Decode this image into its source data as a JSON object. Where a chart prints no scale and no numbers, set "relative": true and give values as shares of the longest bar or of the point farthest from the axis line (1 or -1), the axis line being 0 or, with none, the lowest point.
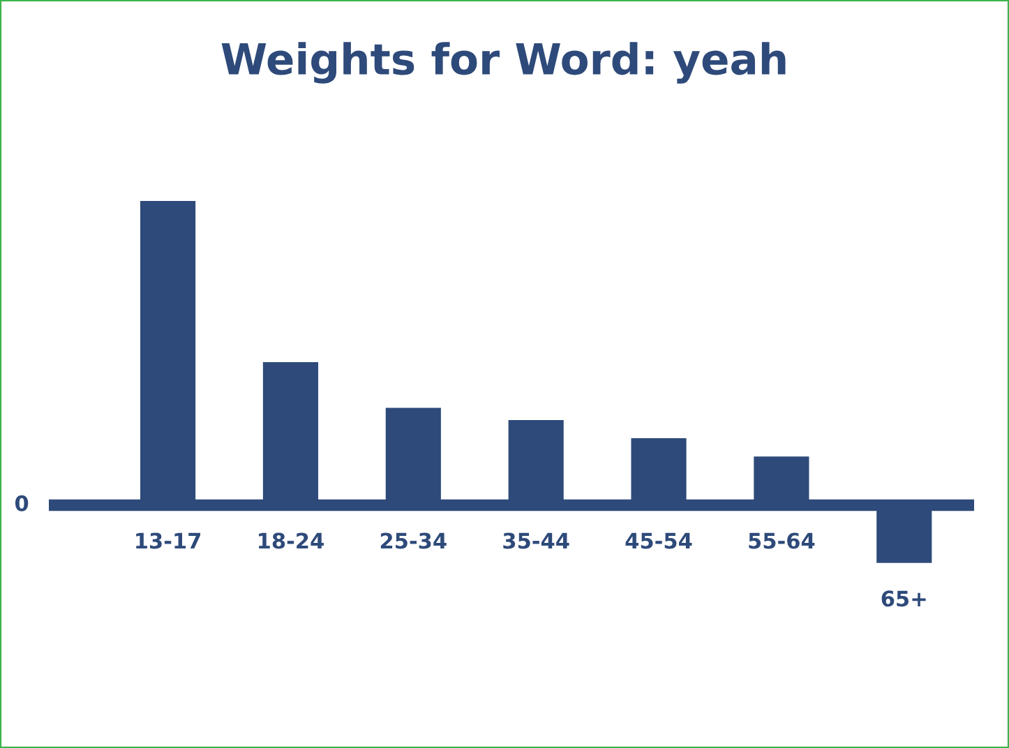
{
  "chart_data": {
    "type": "bar",
    "title": "Weights for Word: yeah",
    "categories": [
      "13-17",
      "18-24",
      "25-34",
      "35-44",
      "45-54",
      "55-64",
      "65+"
    ],
    "values": [
      1,
      0.47,
      0.32,
      0.28,
      0.22,
      0.16,
      -0.19
    ],
    "color": "#2e4a7a",
    "relative": true,
    "annotations": [
      "0"
    ]
  }
}
